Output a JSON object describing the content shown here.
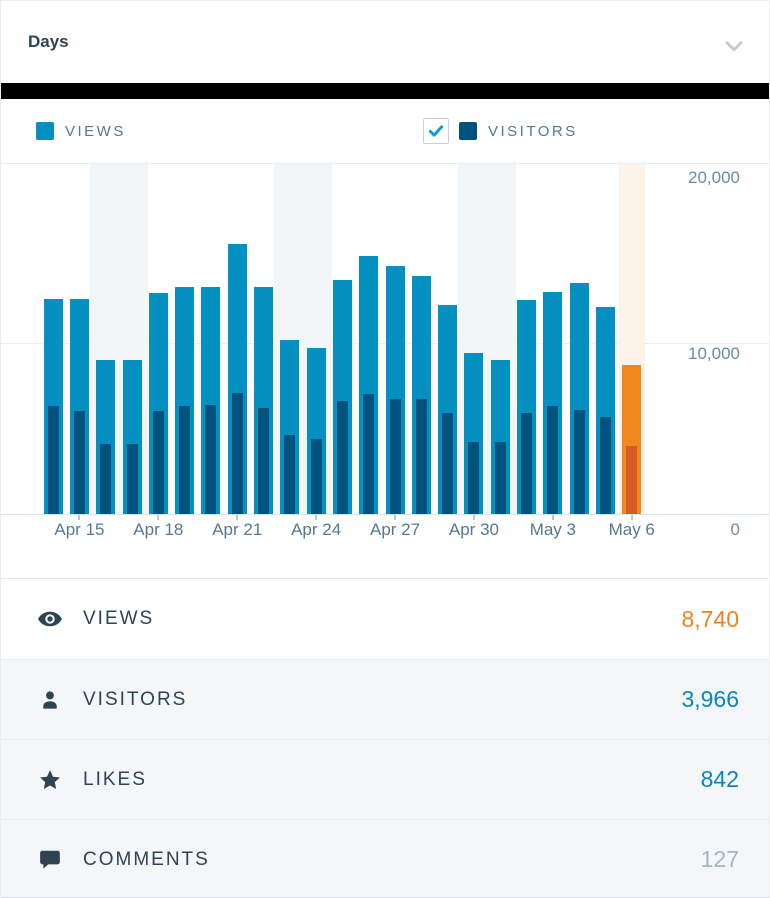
{
  "header": {
    "period_label": "Days"
  },
  "legend": {
    "views_label": "VIEWS",
    "visitors_label": "VISITORS",
    "visitors_checked": true,
    "views_color": "#0590c2",
    "visitors_color": "#01537e"
  },
  "chart_data": {
    "type": "bar",
    "title": "Days",
    "x": [
      "Apr 14",
      "Apr 15",
      "Apr 16",
      "Apr 17",
      "Apr 18",
      "Apr 19",
      "Apr 20",
      "Apr 21",
      "Apr 22",
      "Apr 23",
      "Apr 24",
      "Apr 25",
      "Apr 26",
      "Apr 27",
      "Apr 28",
      "Apr 29",
      "Apr 30",
      "May 1",
      "May 2",
      "May 3",
      "May 4",
      "May 5",
      "May 6"
    ],
    "series": [
      {
        "name": "Views",
        "color": "#0590c2",
        "today_color": "#f0871f",
        "values": [
          12600,
          12600,
          9000,
          9000,
          12900,
          13300,
          13300,
          15800,
          13300,
          10200,
          9700,
          13700,
          15100,
          14500,
          13900,
          12200,
          9400,
          9000,
          12500,
          13000,
          13500,
          12100,
          8740
        ]
      },
      {
        "name": "Visitors",
        "color": "#01537e",
        "today_color": "#d85b25",
        "values": [
          6300,
          6000,
          4100,
          4100,
          6000,
          6300,
          6400,
          7100,
          6200,
          4600,
          4400,
          6600,
          7000,
          6700,
          6700,
          5900,
          4200,
          4200,
          5900,
          6300,
          6100,
          5700,
          3966
        ]
      }
    ],
    "ylim": [
      0,
      20000
    ],
    "y_tick_labels": [
      "20,000",
      "10,000",
      "0"
    ],
    "x_tick_labels": [
      "Apr 15",
      "Apr 18",
      "Apr 21",
      "Apr 24",
      "Apr 27",
      "Apr 30",
      "May 3",
      "May 6"
    ],
    "x_tick_indices": [
      1,
      4,
      7,
      10,
      13,
      16,
      19,
      22
    ],
    "weekend_band_indices": [
      [
        2,
        3
      ],
      [
        9,
        10
      ],
      [
        16,
        17
      ]
    ],
    "weekend_band_color": "#f3f6f9",
    "today_index": 22,
    "today_band_color": "#fdf3e8",
    "grid": "horizontal",
    "legend_position": "top"
  },
  "summary": {
    "rows": [
      {
        "label": "VIEWS",
        "value": "8,740",
        "icon": "eye-icon",
        "value_color": "#f0821e",
        "selected": true
      },
      {
        "label": "VISITORS",
        "value": "3,966",
        "icon": "person-icon",
        "value_color": "#0787be",
        "selected": false
      },
      {
        "label": "LIKES",
        "value": "842",
        "icon": "star-icon",
        "value_color": "#0787be",
        "selected": false
      },
      {
        "label": "COMMENTS",
        "value": "127",
        "icon": "comment-icon",
        "value_color": "#a4b5c4",
        "selected": false
      }
    ]
  }
}
